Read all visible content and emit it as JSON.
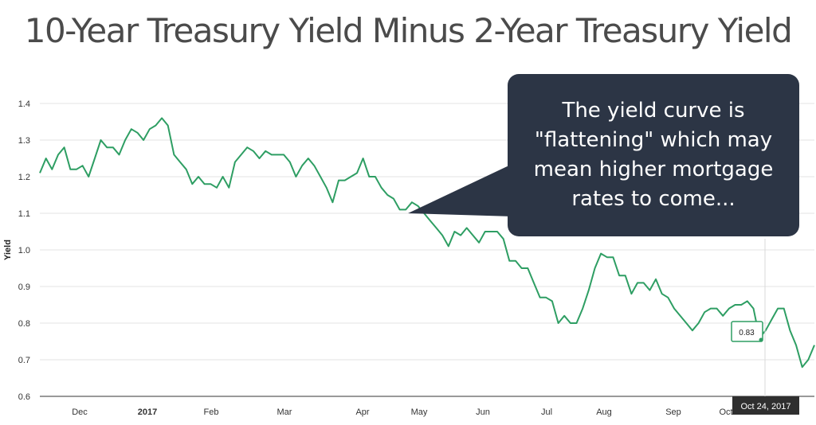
{
  "title": "10-Year Treasury Yield Minus 2-Year Treasury Yield",
  "callout": {
    "text": "The yield curve is \"flattening\" which may mean higher mortgage rates to come..."
  },
  "tooltip": {
    "value": "0.83",
    "date": "Oct 24, 2017"
  },
  "colors": {
    "line": "#2e9e63",
    "grid": "#e3e3e3",
    "axis": "#333333",
    "callout_bg": "#2c3545",
    "tooltip_bg": "#2f2f2f"
  },
  "chart_data": {
    "type": "line",
    "title": "10-Year Treasury Yield Minus 2-Year Treasury Yield",
    "xlabel": "",
    "ylabel": "Yield",
    "ylim": [
      0.6,
      1.4
    ],
    "yticks": [
      "0.6",
      "0.7",
      "0.8",
      "0.9",
      "1.0",
      "1.1",
      "1.2",
      "1.3",
      "1.4"
    ],
    "x_tick_labels": [
      "Dec",
      "2017",
      "Feb",
      "Mar",
      "Apr",
      "May",
      "Jun",
      "Jul",
      "Aug",
      "Sep",
      "Oct"
    ],
    "grid": true,
    "series": [
      {
        "values": [
          1.21,
          1.25,
          1.22,
          1.26,
          1.28,
          1.22,
          1.22,
          1.23,
          1.2,
          1.25,
          1.3,
          1.28,
          1.28,
          1.26,
          1.3,
          1.33,
          1.32,
          1.3,
          1.33,
          1.34,
          1.36,
          1.34,
          1.26,
          1.24,
          1.22,
          1.18,
          1.2,
          1.18,
          1.18,
          1.17,
          1.2,
          1.17,
          1.24,
          1.26,
          1.28,
          1.27,
          1.25,
          1.27,
          1.26,
          1.26,
          1.26,
          1.24,
          1.2,
          1.23,
          1.25,
          1.23,
          1.2,
          1.17,
          1.13,
          1.19,
          1.19,
          1.2,
          1.21,
          1.25,
          1.2,
          1.2,
          1.17,
          1.15,
          1.14,
          1.11,
          1.11,
          1.13,
          1.12,
          1.1,
          1.08,
          1.06,
          1.04,
          1.01,
          1.05,
          1.04,
          1.06,
          1.04,
          1.02,
          1.05,
          1.05,
          1.05,
          1.03,
          0.97,
          0.97,
          0.95,
          0.95,
          0.91,
          0.87,
          0.87,
          0.86,
          0.8,
          0.82,
          0.8,
          0.8,
          0.84,
          0.89,
          0.95,
          0.99,
          0.98,
          0.98,
          0.93,
          0.93,
          0.88,
          0.91,
          0.91,
          0.89,
          0.92,
          0.88,
          0.87,
          0.84,
          0.82,
          0.8,
          0.78,
          0.8,
          0.83,
          0.84,
          0.84,
          0.82,
          0.84,
          0.85,
          0.85,
          0.86,
          0.84,
          0.76,
          0.78,
          0.81,
          0.84,
          0.84,
          0.78,
          0.74,
          0.68,
          0.7,
          0.74
        ]
      }
    ]
  }
}
